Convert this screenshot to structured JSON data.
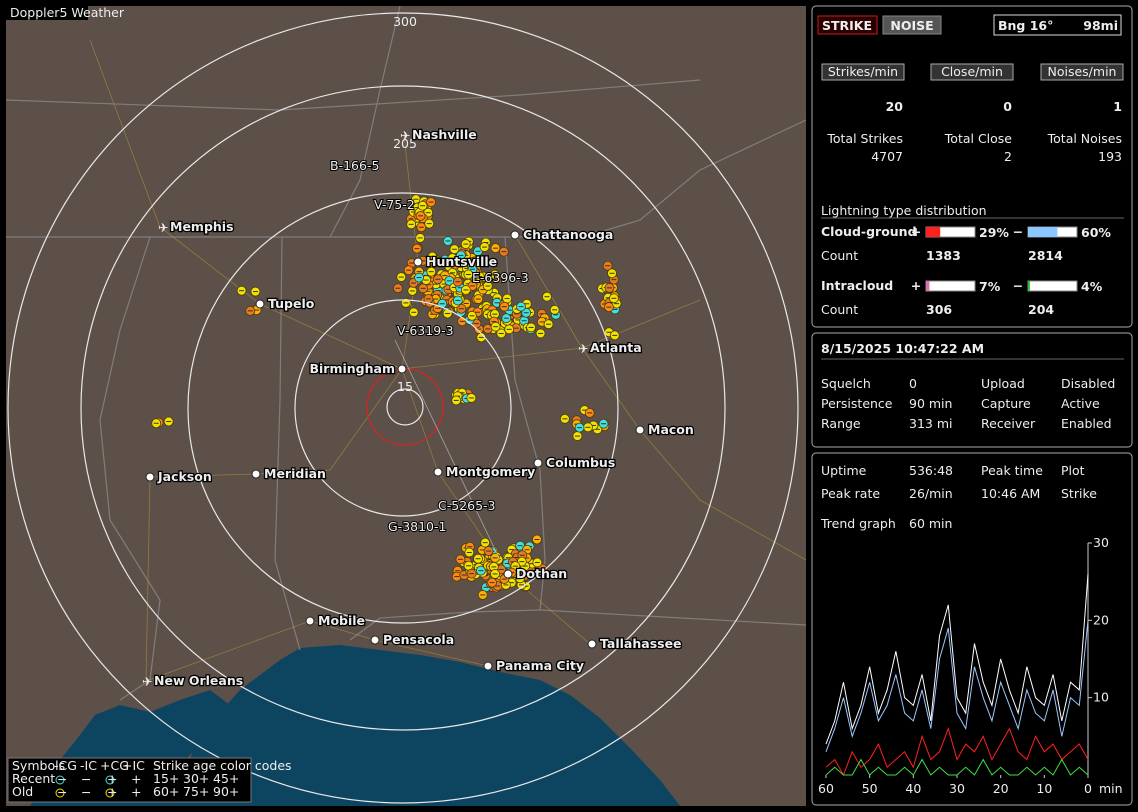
{
  "map": {
    "brand": "Doppler5 Weather",
    "ring_labels": [
      300,
      205,
      15
    ],
    "cities": [
      "Nashville",
      "Memphis",
      "Chattanooga",
      "Huntsville",
      "Tupelo",
      "Atlanta",
      "Birmingham",
      "Macon",
      "Jackson",
      "Meridian",
      "Montgomery",
      "Columbus",
      "Dothan",
      "Mobile",
      "Pensacola",
      "Tallahassee",
      "Panama City",
      "New Orleans"
    ],
    "tracks": [
      "B-166-5",
      "V-75-2",
      "E-6396-3",
      "V-6319-3",
      "C-5265-3",
      "G-3810-1"
    ],
    "legend": {
      "symbols": "Symbols",
      "types": [
        "-CG",
        "-IC",
        "+CG",
        "+IC"
      ],
      "age_title": "Strike age color codes",
      "rows": [
        "Recent",
        "Old"
      ],
      "ages": [
        [
          "15+",
          "30+",
          "45+"
        ],
        [
          "60+",
          "75+",
          "90+"
        ]
      ]
    }
  },
  "status": {
    "strike": "STRIKE",
    "noise": "NOISE",
    "bearing": "Bng 16°",
    "distance": "98mi"
  },
  "rates": [
    {
      "label": "Strikes/min",
      "value": 20,
      "total_label": "Total Strikes",
      "total": 4707
    },
    {
      "label": "Close/min",
      "value": 0,
      "total_label": "Total Close",
      "total": 2
    },
    {
      "label": "Noises/min",
      "value": 1,
      "total_label": "Total Noises",
      "total": 193
    }
  ],
  "distribution": {
    "title": "Lightning type distribution",
    "groups": [
      {
        "label": "Cloud-ground",
        "count_label": "Count",
        "parts": [
          {
            "sign": "+",
            "percent": 29,
            "percent_label": "29%",
            "count": 1383
          },
          {
            "sign": "−",
            "percent": 60,
            "percent_label": "60%",
            "count": 2814
          }
        ]
      },
      {
        "label": "Intracloud",
        "count_label": "Count",
        "parts": [
          {
            "sign": "+",
            "percent": 7,
            "percent_label": "7%",
            "count": 306
          },
          {
            "sign": "−",
            "percent": 4,
            "percent_label": "4%",
            "count": 204
          }
        ]
      }
    ]
  },
  "settings": {
    "datetime": "8/15/2025 10:47:22 AM",
    "rows": [
      [
        "Squelch",
        "0",
        "Upload",
        "Disabled"
      ],
      [
        "Persistence",
        "90 min",
        "Capture",
        "Active"
      ],
      [
        "Range",
        "313 mi",
        "Receiver",
        "Enabled"
      ]
    ]
  },
  "stats": {
    "rows": [
      [
        "Uptime",
        "536:48",
        "Peak time",
        "Plot"
      ],
      [
        "Peak rate",
        "26/min",
        "10:46 AM",
        "Strike"
      ],
      [
        "Trend graph",
        "60 min"
      ]
    ]
  },
  "trend": {
    "x": [
      60,
      58,
      56,
      54,
      52,
      50,
      48,
      46,
      44,
      42,
      40,
      38,
      36,
      34,
      32,
      30,
      28,
      26,
      24,
      22,
      20,
      18,
      16,
      14,
      12,
      10,
      8,
      6,
      4,
      2,
      0
    ],
    "xlim": [
      60,
      0
    ],
    "xticks": [
      60,
      50,
      40,
      30,
      20,
      10,
      0
    ],
    "x_unit": "min",
    "ylim": [
      0,
      30
    ],
    "yticks": [
      10,
      20,
      30
    ],
    "series": [
      {
        "color": "#ffffff",
        "values": [
          4,
          7,
          12,
          6,
          9,
          14,
          8,
          11,
          16,
          10,
          9,
          13,
          7,
          18,
          22,
          10,
          8,
          17,
          12,
          9,
          15,
          11,
          8,
          14,
          10,
          9,
          13,
          7,
          12,
          11,
          26
        ]
      },
      {
        "color": "#9cc8ff",
        "values": [
          3,
          6,
          10,
          5,
          8,
          12,
          7,
          9,
          13,
          8,
          7,
          11,
          6,
          15,
          19,
          8,
          6,
          14,
          10,
          7,
          12,
          9,
          6,
          11,
          8,
          7,
          11,
          5,
          10,
          9,
          20
        ]
      },
      {
        "color": "#ff2020",
        "values": [
          1,
          2,
          0,
          3,
          1,
          2,
          4,
          1,
          2,
          3,
          1,
          5,
          2,
          3,
          6,
          2,
          4,
          3,
          5,
          2,
          4,
          6,
          3,
          2,
          5,
          3,
          4,
          2,
          3,
          4,
          2
        ]
      },
      {
        "color": "#40e040",
        "values": [
          0,
          1,
          0,
          0,
          2,
          0,
          1,
          0,
          0,
          1,
          0,
          2,
          0,
          1,
          0,
          0,
          1,
          0,
          2,
          0,
          1,
          0,
          0,
          1,
          0,
          1,
          0,
          2,
          0,
          1,
          0
        ]
      }
    ]
  }
}
